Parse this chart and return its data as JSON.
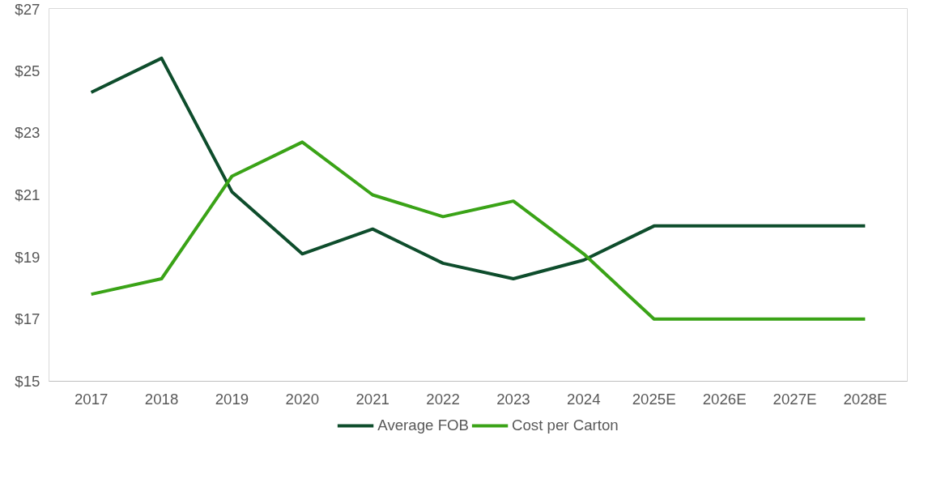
{
  "chart_data": {
    "type": "line",
    "categories": [
      "2017",
      "2018",
      "2019",
      "2020",
      "2021",
      "2022",
      "2023",
      "2024",
      "2025E",
      "2026E",
      "2027E",
      "2028E"
    ],
    "series": [
      {
        "name": "Average FOB",
        "color": "#0e4d2c",
        "values": [
          24.3,
          25.4,
          21.1,
          19.1,
          19.9,
          18.8,
          18.3,
          18.9,
          20,
          20,
          20,
          20
        ]
      },
      {
        "name": "Cost per Carton",
        "color": "#3aa317",
        "values": [
          17.8,
          18.3,
          21.6,
          22.7,
          21.0,
          20.3,
          20.8,
          19.1,
          17,
          17,
          17,
          17
        ]
      }
    ],
    "ylim": [
      15,
      27
    ],
    "yticks": [
      {
        "value": 15,
        "label": "$15"
      },
      {
        "value": 17,
        "label": "$17"
      },
      {
        "value": 19,
        "label": "$19"
      },
      {
        "value": 21,
        "label": "$21"
      },
      {
        "value": 23,
        "label": "$23"
      },
      {
        "value": 25,
        "label": "$25"
      },
      {
        "value": 27,
        "label": "$27"
      }
    ],
    "grid": false,
    "legend": "bottom",
    "marker": "none",
    "line_style": "solid"
  }
}
